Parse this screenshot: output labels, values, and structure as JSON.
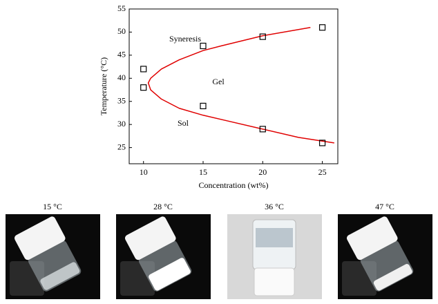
{
  "chart_data": {
    "type": "scatter",
    "xlabel": "Concentration (wt%)",
    "ylabel": "Temperature (°C)",
    "xlim": [
      8.8,
      26.3
    ],
    "ylim": [
      21.5,
      55
    ],
    "xticks": [
      10,
      15,
      20,
      25
    ],
    "yticks": [
      25,
      30,
      35,
      40,
      45,
      50,
      55
    ],
    "points": {
      "color": "#000000",
      "x": [
        10,
        10,
        15,
        15,
        20,
        20,
        25,
        25
      ],
      "y": [
        42,
        38,
        47,
        34,
        49,
        29,
        51,
        26
      ]
    },
    "curve": {
      "color": "#e00000",
      "x": [
        24,
        20,
        16.5,
        15,
        13,
        11.5,
        10.6,
        10.4,
        10.6,
        11.5,
        13,
        15,
        17,
        20,
        23,
        26
      ],
      "y": [
        51,
        49.2,
        47,
        46,
        44,
        42,
        40,
        39,
        37.5,
        35.5,
        33.5,
        32,
        30.8,
        29,
        27.2,
        26
      ]
    },
    "annotations": [
      "Syneresis",
      "Gel",
      "Sol"
    ]
  },
  "photos": [
    "15 °C",
    "28 °C",
    "36 °C",
    "47 °C"
  ]
}
